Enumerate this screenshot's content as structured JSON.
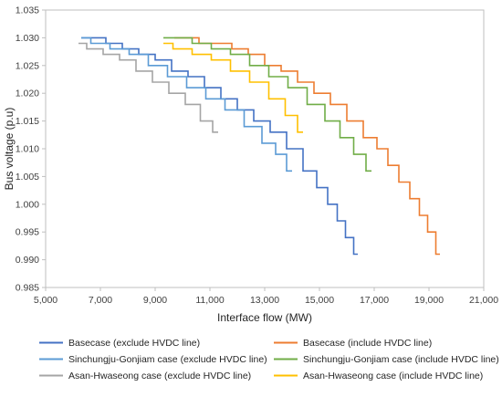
{
  "chart_data": {
    "type": "line",
    "xlabel": "Interface flow (MW)",
    "ylabel": "Bus voltage (p.u)",
    "xlim": [
      5000,
      21000
    ],
    "ylim": [
      0.985,
      1.035
    ],
    "xticks": [
      5000,
      7000,
      9000,
      11000,
      13000,
      15000,
      17000,
      19000,
      21000
    ],
    "xtick_labels": [
      "5,000",
      "7,000",
      "9,000",
      "11,000",
      "13,000",
      "15,000",
      "17,000",
      "19,000",
      "21,000"
    ],
    "yticks": [
      0.985,
      0.99,
      0.995,
      1.0,
      1.005,
      1.01,
      1.015,
      1.02,
      1.025,
      1.03,
      1.035
    ],
    "ytick_labels": [
      "0.985",
      "0.990",
      "0.995",
      "1.000",
      "1.005",
      "1.010",
      "1.015",
      "1.020",
      "1.025",
      "1.030",
      "1.035"
    ],
    "grid": false,
    "legend_position": "bottom",
    "series": [
      {
        "name": "Basecase (exclude HVDC line)",
        "color": "#4472C4",
        "x": [
          6300,
          6900,
          7500,
          8100,
          8700,
          9300,
          9900,
          10500,
          11100,
          11700,
          12300,
          12900,
          13500,
          14100,
          14700,
          15100,
          15500,
          15800,
          16100,
          16400
        ],
        "y": [
          1.03,
          1.03,
          1.029,
          1.028,
          1.027,
          1.026,
          1.024,
          1.023,
          1.021,
          1.019,
          1.017,
          1.015,
          1.013,
          1.01,
          1.006,
          1.003,
          1.0,
          0.997,
          0.994,
          0.991
        ]
      },
      {
        "name": "Basecase (include HVDC line)",
        "color": "#ED7D31",
        "x": [
          9700,
          10300,
          10900,
          11500,
          12100,
          12700,
          13300,
          13900,
          14500,
          15100,
          15700,
          16300,
          16900,
          17300,
          17700,
          18100,
          18500,
          18800,
          19100,
          19400
        ],
        "y": [
          1.03,
          1.03,
          1.029,
          1.029,
          1.028,
          1.027,
          1.025,
          1.024,
          1.022,
          1.02,
          1.018,
          1.015,
          1.012,
          1.01,
          1.007,
          1.004,
          1.001,
          0.998,
          0.995,
          0.991
        ]
      },
      {
        "name": "Sinchungju-Gonjiam case (exclude HVDC line)",
        "color": "#5B9BD5",
        "x": [
          6300,
          7000,
          7700,
          8400,
          9100,
          9800,
          10500,
          11200,
          11900,
          12600,
          13200,
          13600,
          14000
        ],
        "y": [
          1.03,
          1.029,
          1.028,
          1.027,
          1.025,
          1.023,
          1.021,
          1.019,
          1.017,
          1.014,
          1.011,
          1.009,
          1.006
        ]
      },
      {
        "name": "Sinchungju-Gonjiam case (include HVDC line)",
        "color": "#70AD47",
        "x": [
          9300,
          10000,
          10700,
          11400,
          12100,
          12800,
          13500,
          14200,
          14900,
          15500,
          16000,
          16500,
          16900
        ],
        "y": [
          1.03,
          1.03,
          1.029,
          1.028,
          1.027,
          1.025,
          1.023,
          1.021,
          1.018,
          1.015,
          1.012,
          1.009,
          1.006
        ]
      },
      {
        "name": "Asan-Hwaseong case (exclude HVDC line)",
        "color": "#A5A5A5",
        "x": [
          6200,
          6800,
          7400,
          8000,
          8600,
          9200,
          9800,
          10400,
          10900,
          11300
        ],
        "y": [
          1.029,
          1.028,
          1.027,
          1.026,
          1.024,
          1.022,
          1.02,
          1.018,
          1.015,
          1.013
        ]
      },
      {
        "name": "Asan-Hwaseong case (include HVDC line)",
        "color": "#FFC000",
        "x": [
          9300,
          10000,
          10700,
          11400,
          12100,
          12800,
          13500,
          14000,
          14400
        ],
        "y": [
          1.029,
          1.028,
          1.027,
          1.026,
          1.024,
          1.022,
          1.019,
          1.016,
          1.013
        ]
      }
    ]
  }
}
